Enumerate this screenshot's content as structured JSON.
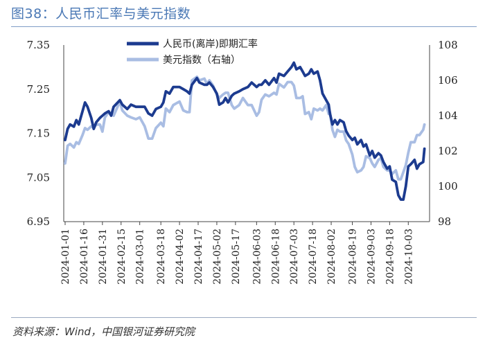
{
  "figure": {
    "title": "图38：人民币汇率与美元指数",
    "source": "资料来源：Wind，中国银河证券研究院"
  },
  "chart_data": {
    "type": "line",
    "x_ticks": [
      "2024-01-01",
      "2024-01-16",
      "2024-01-31",
      "2024-02-15",
      "2024-03-01",
      "2024-03-18",
      "2024-04-02",
      "2024-04-17",
      "2024-05-02",
      "2024-05-17",
      "2024-06-03",
      "2024-06-18",
      "2024-07-03",
      "2024-07-18",
      "2024-08-02",
      "2024-08-19",
      "2024-09-03",
      "2024-09-18",
      "2024-10-03"
    ],
    "y_left": {
      "ylim": [
        6.95,
        7.35
      ],
      "ticks": [
        "6.95",
        "7.05",
        "7.15",
        "7.25",
        "7.35"
      ]
    },
    "y_right": {
      "ylim": [
        98,
        108
      ],
      "ticks": [
        "98",
        "100",
        "102",
        "104",
        "106",
        "108"
      ]
    },
    "legend_position": "top",
    "grid": false,
    "series": [
      {
        "name": "人民币(离岸)即期汇率",
        "axis": "left",
        "color": "#1c3b8f",
        "points": [
          [
            "2024-01-01",
            7.135
          ],
          [
            "2024-01-03",
            7.16
          ],
          [
            "2024-01-05",
            7.17
          ],
          [
            "2024-01-08",
            7.165
          ],
          [
            "2024-01-10",
            7.18
          ],
          [
            "2024-01-12",
            7.17
          ],
          [
            "2024-01-15",
            7.2
          ],
          [
            "2024-01-17",
            7.22
          ],
          [
            "2024-01-19",
            7.21
          ],
          [
            "2024-01-22",
            7.185
          ],
          [
            "2024-01-24",
            7.16
          ],
          [
            "2024-01-26",
            7.175
          ],
          [
            "2024-01-29",
            7.185
          ],
          [
            "2024-01-31",
            7.19
          ],
          [
            "2024-02-02",
            7.195
          ],
          [
            "2024-02-05",
            7.2
          ],
          [
            "2024-02-07",
            7.19
          ],
          [
            "2024-02-09",
            7.21
          ],
          [
            "2024-02-14",
            7.225
          ],
          [
            "2024-02-16",
            7.215
          ],
          [
            "2024-02-20",
            7.205
          ],
          [
            "2024-02-23",
            7.215
          ],
          [
            "2024-02-27",
            7.21
          ],
          [
            "2024-03-01",
            7.21
          ],
          [
            "2024-03-05",
            7.21
          ],
          [
            "2024-03-08",
            7.195
          ],
          [
            "2024-03-11",
            7.19
          ],
          [
            "2024-03-14",
            7.205
          ],
          [
            "2024-03-18",
            7.21
          ],
          [
            "2024-03-20",
            7.22
          ],
          [
            "2024-03-22",
            7.245
          ],
          [
            "2024-03-25",
            7.24
          ],
          [
            "2024-03-28",
            7.255
          ],
          [
            "2024-04-02",
            7.255
          ],
          [
            "2024-04-05",
            7.25
          ],
          [
            "2024-04-08",
            7.245
          ],
          [
            "2024-04-10",
            7.24
          ],
          [
            "2024-04-12",
            7.26
          ],
          [
            "2024-04-16",
            7.275
          ],
          [
            "2024-04-18",
            7.265
          ],
          [
            "2024-04-22",
            7.26
          ],
          [
            "2024-04-24",
            7.26
          ],
          [
            "2024-04-26",
            7.265
          ],
          [
            "2024-04-29",
            7.255
          ],
          [
            "2024-05-02",
            7.24
          ],
          [
            "2024-05-04",
            7.215
          ],
          [
            "2024-05-07",
            7.22
          ],
          [
            "2024-05-09",
            7.23
          ],
          [
            "2024-05-11",
            7.22
          ],
          [
            "2024-05-14",
            7.235
          ],
          [
            "2024-05-16",
            7.24
          ],
          [
            "2024-05-20",
            7.245
          ],
          [
            "2024-05-23",
            7.25
          ],
          [
            "2024-05-27",
            7.255
          ],
          [
            "2024-05-30",
            7.265
          ],
          [
            "2024-06-03",
            7.255
          ],
          [
            "2024-06-05",
            7.26
          ],
          [
            "2024-06-07",
            7.26
          ],
          [
            "2024-06-10",
            7.27
          ],
          [
            "2024-06-13",
            7.26
          ],
          [
            "2024-06-17",
            7.275
          ],
          [
            "2024-06-19",
            7.265
          ],
          [
            "2024-06-21",
            7.285
          ],
          [
            "2024-06-25",
            7.28
          ],
          [
            "2024-06-28",
            7.29
          ],
          [
            "2024-07-01",
            7.3
          ],
          [
            "2024-07-03",
            7.31
          ],
          [
            "2024-07-05",
            7.295
          ],
          [
            "2024-07-08",
            7.3
          ],
          [
            "2024-07-10",
            7.29
          ],
          [
            "2024-07-12",
            7.28
          ],
          [
            "2024-07-15",
            7.285
          ],
          [
            "2024-07-17",
            7.295
          ],
          [
            "2024-07-19",
            7.285
          ],
          [
            "2024-07-22",
            7.29
          ],
          [
            "2024-07-24",
            7.27
          ],
          [
            "2024-07-26",
            7.24
          ],
          [
            "2024-07-29",
            7.225
          ],
          [
            "2024-07-31",
            7.215
          ],
          [
            "2024-08-01",
            7.195
          ],
          [
            "2024-08-03",
            7.17
          ],
          [
            "2024-08-05",
            7.18
          ],
          [
            "2024-08-07",
            7.17
          ],
          [
            "2024-08-09",
            7.18
          ],
          [
            "2024-08-12",
            7.175
          ],
          [
            "2024-08-14",
            7.155
          ],
          [
            "2024-08-16",
            7.145
          ],
          [
            "2024-08-19",
            7.135
          ],
          [
            "2024-08-21",
            7.14
          ],
          [
            "2024-08-23",
            7.125
          ],
          [
            "2024-08-26",
            7.135
          ],
          [
            "2024-08-28",
            7.12
          ],
          [
            "2024-08-30",
            7.125
          ],
          [
            "2024-09-02",
            7.1
          ],
          [
            "2024-09-04",
            7.11
          ],
          [
            "2024-09-06",
            7.095
          ],
          [
            "2024-09-09",
            7.105
          ],
          [
            "2024-09-11",
            7.1
          ],
          [
            "2024-09-13",
            7.085
          ],
          [
            "2024-09-16",
            7.07
          ],
          [
            "2024-09-18",
            7.075
          ],
          [
            "2024-09-20",
            7.045
          ],
          [
            "2024-09-23",
            7.04
          ],
          [
            "2024-09-25",
            7.01
          ],
          [
            "2024-09-27",
            7.0
          ],
          [
            "2024-09-29",
            7.0
          ],
          [
            "2024-10-01",
            7.03
          ],
          [
            "2024-10-03",
            7.075
          ],
          [
            "2024-10-05",
            7.08
          ],
          [
            "2024-10-08",
            7.09
          ],
          [
            "2024-10-10",
            7.07
          ],
          [
            "2024-10-12",
            7.08
          ],
          [
            "2024-10-15",
            7.085
          ],
          [
            "2024-10-16",
            7.115
          ]
        ]
      },
      {
        "name": "美元指数（右轴）",
        "axis": "right",
        "color": "#a9bde3",
        "points": [
          [
            "2024-01-01",
            101.3
          ],
          [
            "2024-01-03",
            102.3
          ],
          [
            "2024-01-05",
            102.4
          ],
          [
            "2024-01-08",
            102.2
          ],
          [
            "2024-01-10",
            102.5
          ],
          [
            "2024-01-12",
            102.4
          ],
          [
            "2024-01-15",
            102.9
          ],
          [
            "2024-01-17",
            103.3
          ],
          [
            "2024-01-19",
            103.2
          ],
          [
            "2024-01-22",
            103.4
          ],
          [
            "2024-01-24",
            103.3
          ],
          [
            "2024-01-26",
            103.5
          ],
          [
            "2024-01-29",
            103.5
          ],
          [
            "2024-01-31",
            103.1
          ],
          [
            "2024-02-02",
            103.9
          ],
          [
            "2024-02-05",
            104.2
          ],
          [
            "2024-02-07",
            104.1
          ],
          [
            "2024-02-09",
            104.0
          ],
          [
            "2024-02-14",
            104.8
          ],
          [
            "2024-02-16",
            104.3
          ],
          [
            "2024-02-20",
            104.0
          ],
          [
            "2024-02-23",
            103.9
          ],
          [
            "2024-02-27",
            103.8
          ],
          [
            "2024-03-01",
            103.9
          ],
          [
            "2024-03-05",
            103.4
          ],
          [
            "2024-03-08",
            102.7
          ],
          [
            "2024-03-11",
            102.7
          ],
          [
            "2024-03-14",
            103.3
          ],
          [
            "2024-03-18",
            103.6
          ],
          [
            "2024-03-20",
            103.4
          ],
          [
            "2024-03-22",
            104.4
          ],
          [
            "2024-03-25",
            104.2
          ],
          [
            "2024-03-28",
            104.6
          ],
          [
            "2024-04-02",
            104.8
          ],
          [
            "2024-04-05",
            104.3
          ],
          [
            "2024-04-08",
            104.2
          ],
          [
            "2024-04-10",
            104.2
          ],
          [
            "2024-04-12",
            106.0
          ],
          [
            "2024-04-16",
            106.2
          ],
          [
            "2024-04-18",
            106.0
          ],
          [
            "2024-04-22",
            106.1
          ],
          [
            "2024-04-24",
            105.8
          ],
          [
            "2024-04-26",
            106.0
          ],
          [
            "2024-04-29",
            105.7
          ],
          [
            "2024-05-02",
            105.2
          ],
          [
            "2024-05-04",
            105.0
          ],
          [
            "2024-05-07",
            105.2
          ],
          [
            "2024-05-09",
            105.3
          ],
          [
            "2024-05-11",
            105.3
          ],
          [
            "2024-05-14",
            104.6
          ],
          [
            "2024-05-16",
            104.4
          ],
          [
            "2024-05-20",
            104.6
          ],
          [
            "2024-05-23",
            105.0
          ],
          [
            "2024-05-27",
            104.6
          ],
          [
            "2024-05-30",
            104.6
          ],
          [
            "2024-06-03",
            104.0
          ],
          [
            "2024-06-05",
            104.2
          ],
          [
            "2024-06-07",
            104.9
          ],
          [
            "2024-06-10",
            105.2
          ],
          [
            "2024-06-13",
            105.1
          ],
          [
            "2024-06-17",
            105.3
          ],
          [
            "2024-06-19",
            105.2
          ],
          [
            "2024-06-21",
            105.8
          ],
          [
            "2024-06-25",
            105.6
          ],
          [
            "2024-06-28",
            105.9
          ],
          [
            "2024-07-01",
            105.9
          ],
          [
            "2024-07-03",
            105.7
          ],
          [
            "2024-07-05",
            105.0
          ],
          [
            "2024-07-08",
            105.0
          ],
          [
            "2024-07-10",
            105.1
          ],
          [
            "2024-07-12",
            104.1
          ],
          [
            "2024-07-15",
            104.2
          ],
          [
            "2024-07-17",
            103.8
          ],
          [
            "2024-07-19",
            104.4
          ],
          [
            "2024-07-22",
            104.3
          ],
          [
            "2024-07-24",
            104.4
          ],
          [
            "2024-07-26",
            104.3
          ],
          [
            "2024-07-29",
            104.6
          ],
          [
            "2024-07-31",
            104.1
          ],
          [
            "2024-08-01",
            104.2
          ],
          [
            "2024-08-03",
            103.2
          ],
          [
            "2024-08-05",
            102.8
          ],
          [
            "2024-08-07",
            103.2
          ],
          [
            "2024-08-09",
            103.1
          ],
          [
            "2024-08-12",
            103.1
          ],
          [
            "2024-08-14",
            102.6
          ],
          [
            "2024-08-16",
            102.4
          ],
          [
            "2024-08-19",
            101.8
          ],
          [
            "2024-08-21",
            101.1
          ],
          [
            "2024-08-23",
            100.8
          ],
          [
            "2024-08-26",
            100.9
          ],
          [
            "2024-08-28",
            101.1
          ],
          [
            "2024-08-30",
            101.7
          ],
          [
            "2024-09-02",
            101.6
          ],
          [
            "2024-09-04",
            101.3
          ],
          [
            "2024-09-06",
            101.1
          ],
          [
            "2024-09-09",
            101.5
          ],
          [
            "2024-09-11",
            101.6
          ],
          [
            "2024-09-13",
            101.1
          ],
          [
            "2024-09-16",
            100.9
          ],
          [
            "2024-09-18",
            100.9
          ],
          [
            "2024-09-20",
            100.7
          ],
          [
            "2024-09-23",
            100.9
          ],
          [
            "2024-09-25",
            100.4
          ],
          [
            "2024-09-27",
            100.4
          ],
          [
            "2024-09-29",
            100.8
          ],
          [
            "2024-10-01",
            101.2
          ],
          [
            "2024-10-03",
            101.9
          ],
          [
            "2024-10-05",
            102.5
          ],
          [
            "2024-10-08",
            102.5
          ],
          [
            "2024-10-10",
            102.9
          ],
          [
            "2024-10-12",
            102.9
          ],
          [
            "2024-10-15",
            103.2
          ],
          [
            "2024-10-16",
            103.5
          ]
        ]
      }
    ]
  }
}
